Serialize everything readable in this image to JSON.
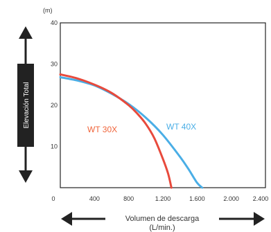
{
  "chart_data": {
    "type": "line",
    "y_unit_label": "(m)",
    "ylabel": "Elevación Total",
    "xlabel_line1": "Volumen de descarga",
    "xlabel_line2": "(L/min.)",
    "xlim": [
      0,
      2400
    ],
    "ylim": [
      0,
      40
    ],
    "x_ticks": [
      0,
      400,
      800,
      1200,
      1600,
      2000,
      2400
    ],
    "x_tick_labels": [
      "0",
      "400",
      "800",
      "1.200",
      "1.600",
      "2.000",
      "2.400"
    ],
    "y_ticks": [
      10,
      20,
      30,
      40
    ],
    "y_tick_labels": [
      "10",
      "20",
      "30",
      "40"
    ],
    "grid": false,
    "series": [
      {
        "name": "WT 30X",
        "color": "#e84a3c",
        "label_color": "#f0643a",
        "x": [
          0,
          200,
          400,
          600,
          800,
          900,
          1000,
          1100,
          1200,
          1260,
          1300
        ],
        "y": [
          27.5,
          26.5,
          25,
          23,
          20,
          18,
          15.5,
          12,
          7,
          3.5,
          0
        ]
      },
      {
        "name": "WT 40X",
        "color": "#4aaee6",
        "label_color": "#4aaee6",
        "x": [
          0,
          200,
          400,
          600,
          800,
          1000,
          1200,
          1400,
          1500,
          1600,
          1660
        ],
        "y": [
          26.8,
          26,
          24.8,
          22.8,
          20.3,
          17,
          12.8,
          7.5,
          4.5,
          1.2,
          0
        ]
      }
    ]
  }
}
